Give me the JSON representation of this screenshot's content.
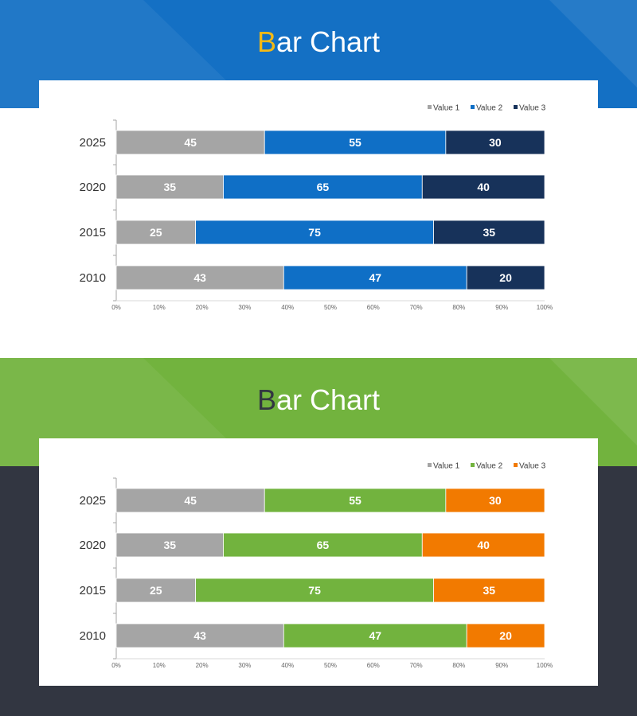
{
  "charts": [
    {
      "title_first": "B",
      "title_rest": "ar Chart",
      "colors": {
        "banner": "#1470c4",
        "first_letter": "#f5b914",
        "series": [
          "#a5a5a5",
          "#0f6fc6",
          "#17325a"
        ]
      }
    },
    {
      "title_first": "B",
      "title_rest": "ar Chart",
      "colors": {
        "banner": "#72b33e",
        "first_letter": "#323641",
        "series": [
          "#a5a5a5",
          "#72b33e",
          "#f27a00"
        ]
      }
    }
  ],
  "chart_data": [
    {
      "type": "bar",
      "orientation": "horizontal",
      "stacked": "100%",
      "title": "Bar Chart",
      "categories": [
        "2025",
        "2020",
        "2015",
        "2010"
      ],
      "series": [
        {
          "name": "Value  1",
          "values": [
            45,
            35,
            25,
            43
          ]
        },
        {
          "name": "Value  2",
          "values": [
            55,
            65,
            75,
            47
          ]
        },
        {
          "name": "Value 3",
          "values": [
            30,
            40,
            35,
            20
          ]
        }
      ],
      "x_ticks": [
        "0%",
        "10%",
        "20%",
        "30%",
        "40%",
        "50%",
        "60%",
        "70%",
        "80%",
        "90%",
        "100%"
      ],
      "xlim": [
        0,
        100
      ],
      "legend": "top-right"
    },
    {
      "type": "bar",
      "orientation": "horizontal",
      "stacked": "100%",
      "title": "Bar Chart",
      "categories": [
        "2025",
        "2020",
        "2015",
        "2010"
      ],
      "series": [
        {
          "name": "Value  1",
          "values": [
            45,
            35,
            25,
            43
          ]
        },
        {
          "name": "Value  2",
          "values": [
            55,
            65,
            75,
            47
          ]
        },
        {
          "name": "Value 3",
          "values": [
            30,
            40,
            35,
            20
          ]
        }
      ],
      "x_ticks": [
        "0%",
        "10%",
        "20%",
        "30%",
        "40%",
        "50%",
        "60%",
        "70%",
        "80%",
        "90%",
        "100%"
      ],
      "xlim": [
        0,
        100
      ],
      "legend": "top-right"
    }
  ]
}
